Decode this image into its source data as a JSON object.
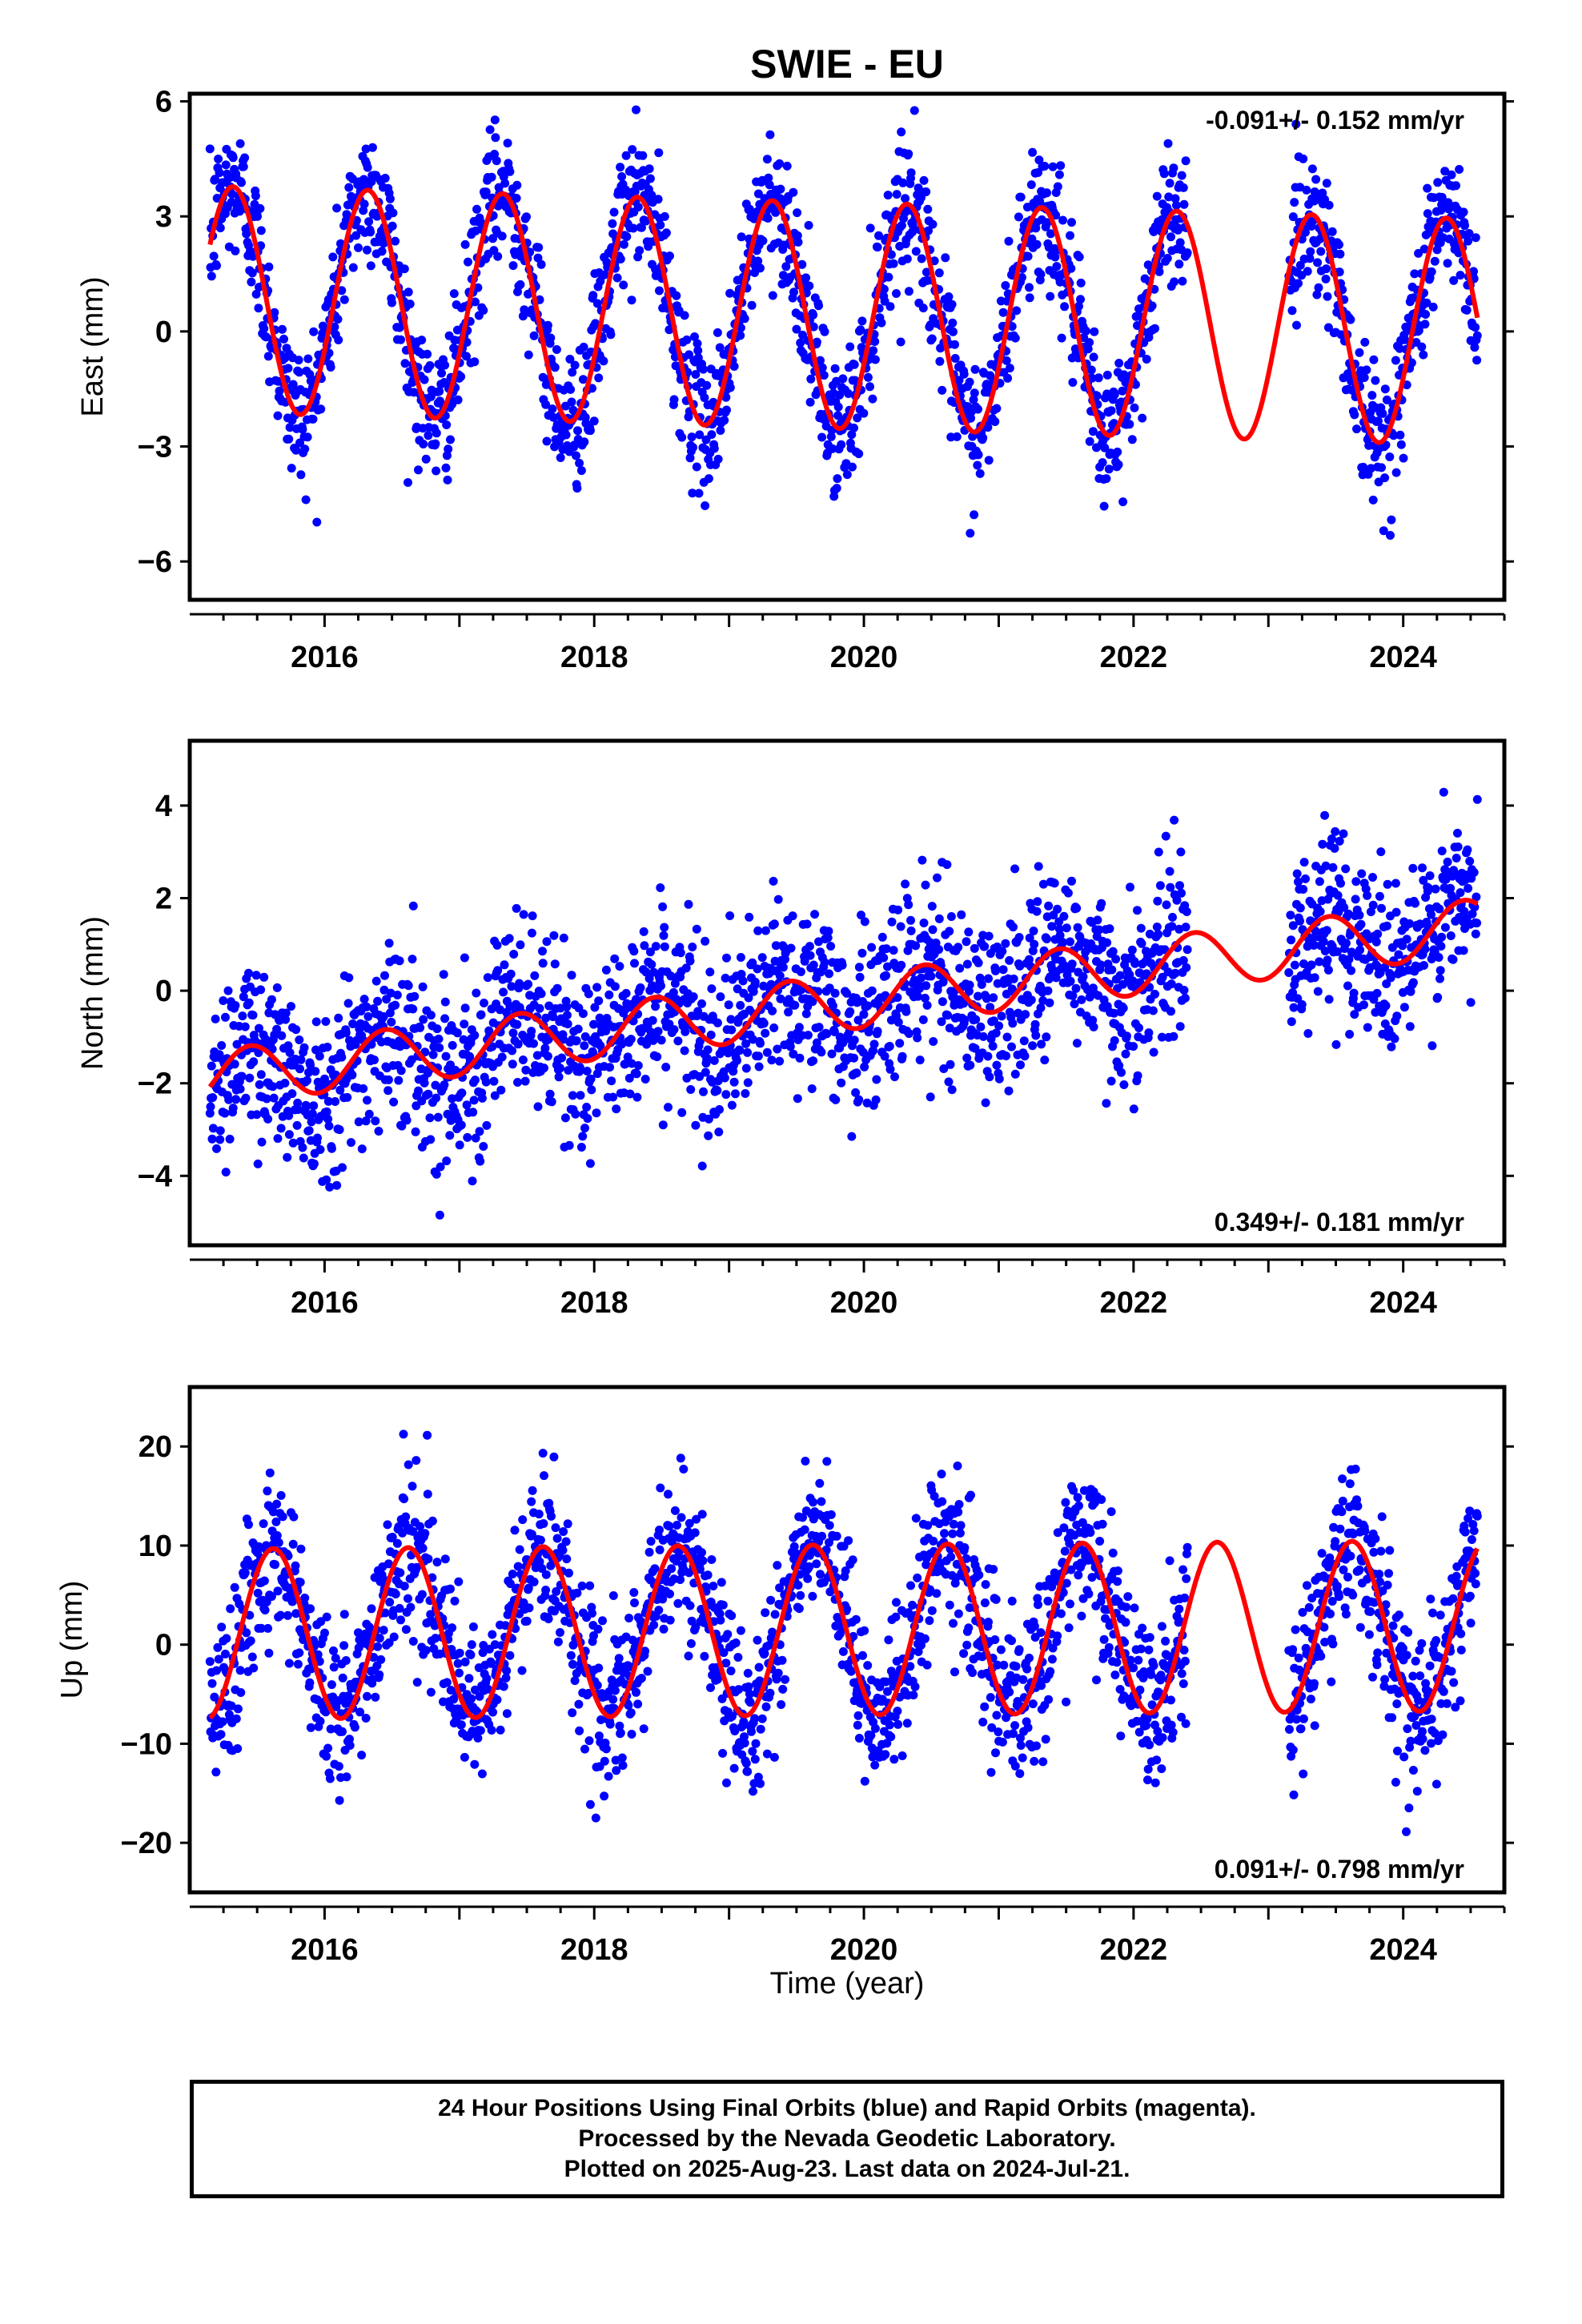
{
  "chart_data": {
    "type": "scatter",
    "title": "SWIE - EU",
    "xlabel": "Time (year)",
    "x_tick_labels": [
      "2016",
      "2018",
      "2020",
      "2022",
      "2024"
    ],
    "xlim": [
      2015.0,
      2024.75
    ],
    "colors": {
      "points": "#0000ff",
      "model": "#ff0000",
      "frame": "#000000"
    },
    "first_data": 2015.15,
    "last_data": 2024.55,
    "gaps": [
      [
        2022.4,
        2023.15
      ]
    ],
    "panels": [
      {
        "name": "east",
        "ylabel": "East (mm)",
        "ylim": [
          -7,
          6.2
        ],
        "ticks": [
          6,
          3,
          0,
          -3,
          -6
        ],
        "tick_labels": [
          "6",
          "3",
          "0",
          "−3",
          "−6"
        ],
        "rate_text": "-0.091+/- 0.152 mm/yr",
        "rate_position": "top-right",
        "model": {
          "offset": 0.4,
          "trend": -0.091,
          "amplitude": 2.95,
          "peak": 0.32
        },
        "noise_sd": 0.9,
        "n_points": 2300
      },
      {
        "name": "north",
        "ylabel": "North (mm)",
        "ylim": [
          -5.5,
          5.4
        ],
        "ticks": [
          4,
          2,
          0,
          -2,
          -4
        ],
        "tick_labels": [
          "4",
          "2",
          "0",
          "−2",
          "−4"
        ],
        "rate_text": "0.349+/- 0.181 mm/yr",
        "rate_position": "bottom-right",
        "model": {
          "offset": -0.2,
          "trend": 0.349,
          "amplitude": 0.6,
          "peak": 0.45
        },
        "noise_sd": 0.95,
        "n_points": 2300
      },
      {
        "name": "up",
        "ylabel": "Up (mm)",
        "ylim": [
          -25,
          26
        ],
        "ticks": [
          20,
          10,
          0,
          -10,
          -20
        ],
        "tick_labels": [
          "20",
          "10",
          "0",
          "−10",
          "−20"
        ],
        "rate_text": "0.091+/- 0.798 mm/yr",
        "rate_position": "bottom-right",
        "model": {
          "offset": 1.5,
          "trend": 0.091,
          "amplitude": 8.6,
          "peak": 0.62
        },
        "noise_sd": 4.0,
        "n_points": 2300
      }
    ]
  },
  "footer": {
    "line1": "24 Hour Positions Using Final Orbits (blue) and Rapid Orbits (magenta).",
    "line2": "Processed by the Nevada Geodetic Laboratory.",
    "line3": "Plotted on 2025-Aug-23. Last data on 2024-Jul-21."
  }
}
